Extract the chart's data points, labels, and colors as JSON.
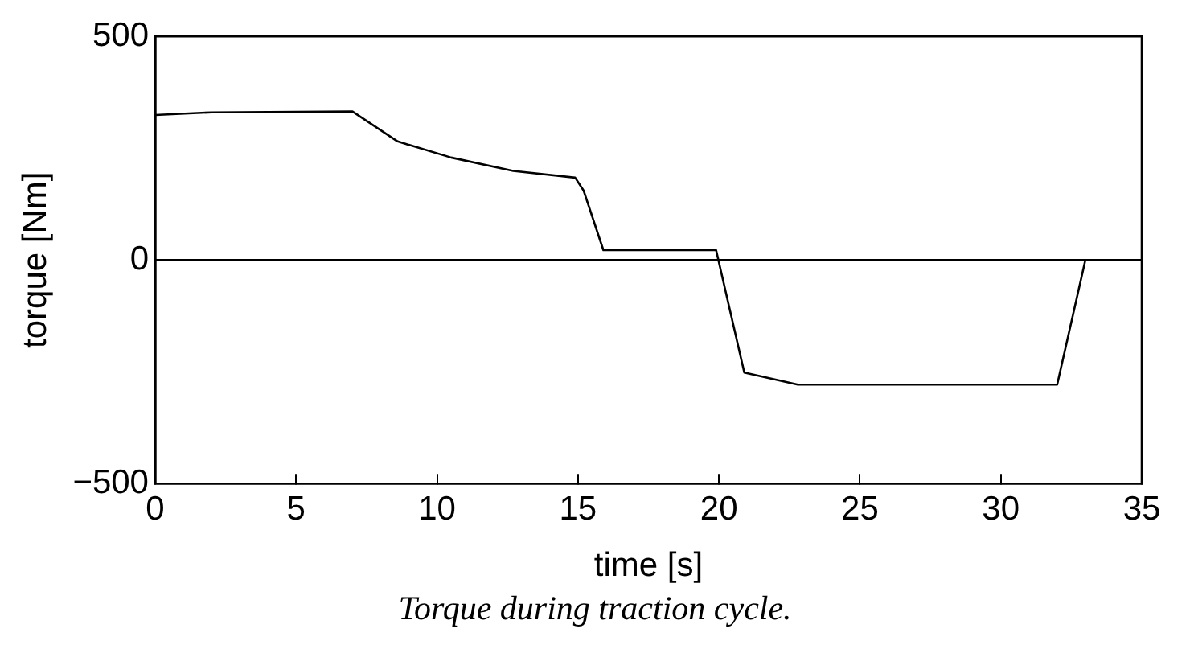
{
  "chart_data": {
    "type": "line",
    "xlabel": "time [s]",
    "ylabel": "torque [Nm]",
    "x": [
      0,
      2,
      7,
      8.6,
      10.5,
      12.7,
      14.9,
      15.2,
      15.9,
      19.9,
      20.9,
      22.8,
      32,
      33
    ],
    "series": [
      {
        "color": "#000000",
        "values": [
          324,
          330,
          332,
          265,
          229,
          199,
          184,
          155,
          22,
          22,
          -252,
          -279,
          -279,
          0
        ]
      }
    ],
    "xlim": [
      0,
      35
    ],
    "xticks": [
      0,
      5,
      10,
      15,
      20,
      25,
      30,
      35
    ],
    "ylim": [
      -500,
      500
    ],
    "yticks": [
      -500,
      0,
      500
    ],
    "ref_lines": [
      {
        "axis": "y",
        "value": 0,
        "color": "#000000"
      }
    ],
    "annotations": [
      "Torque during traction cycle."
    ],
    "grid": false,
    "legend": false,
    "marker": "none",
    "line_style": "solid"
  }
}
